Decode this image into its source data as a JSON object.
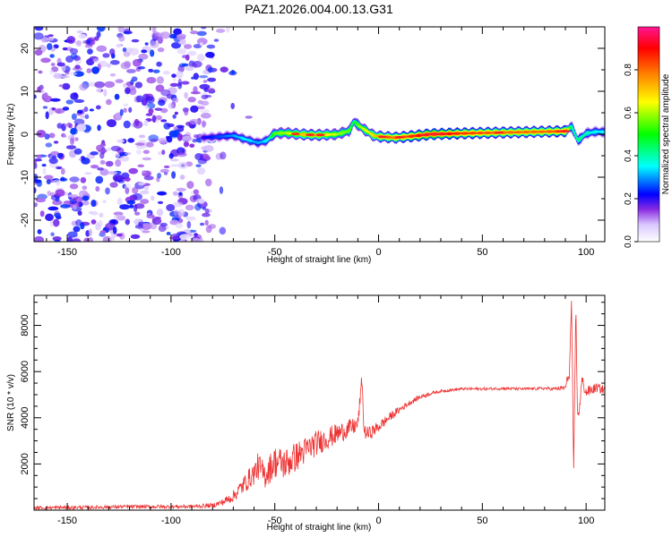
{
  "title": "PAZ1.2026.004.00.13.G31",
  "chart_data": [
    {
      "type": "heatmap",
      "title": "PAZ1.2026.004.00.13.G31",
      "xlabel": "Height of straight line (km)",
      "ylabel": "Frequency (Hz)",
      "xlim": [
        -166,
        109
      ],
      "ylim": [
        -25,
        25
      ],
      "xticks": [
        -150,
        -100,
        -50,
        0,
        50,
        100
      ],
      "yticks": [
        -20,
        -10,
        0,
        10,
        20
      ],
      "colorbar": {
        "label": "Normalized spectral amplitude",
        "range": [
          0,
          1
        ],
        "ticks": [
          0,
          0.2,
          0.4,
          0.6,
          0.8
        ],
        "tick_labels": [
          "0.0",
          "0.2",
          "0.4",
          "0.6",
          "0.8"
        ],
        "colors": [
          "#ffffff",
          "#8a2be2",
          "#0000ff",
          "#00ffff",
          "#00ff00",
          "#ffff00",
          "#ff8000",
          "#ff0000",
          "#ff1493"
        ]
      },
      "noise_region": {
        "x_range": [
          -166,
          -80
        ],
        "freq_range": [
          -25,
          25
        ],
        "amplitude": [
          0.05,
          0.25
        ]
      },
      "ridge": {
        "x": [
          -85,
          -78,
          -70,
          -64,
          -58,
          -54,
          -50,
          -45,
          -38,
          -30,
          -20,
          -14,
          -12,
          -9,
          -5,
          -2,
          2,
          8,
          15,
          25,
          40,
          60,
          80,
          90,
          93,
          96,
          100,
          105,
          109
        ],
        "freq": [
          -0.8,
          -0.6,
          -0.3,
          -1.2,
          -2.0,
          -1.5,
          0.2,
          0.3,
          0.0,
          -0.2,
          0.0,
          0.8,
          3.0,
          1.8,
          0.5,
          -0.4,
          -0.6,
          -0.8,
          -0.5,
          0.0,
          0.2,
          0.4,
          0.6,
          0.7,
          1.8,
          -1.5,
          0.2,
          0.6,
          0.5
        ],
        "amplitude": [
          0.2,
          0.25,
          0.3,
          0.35,
          0.3,
          0.35,
          0.55,
          0.6,
          0.7,
          0.75,
          0.6,
          0.55,
          0.45,
          0.6,
          0.65,
          0.7,
          0.8,
          0.8,
          0.85,
          0.95,
          0.85,
          0.8,
          0.8,
          0.85,
          0.4,
          0.45,
          0.4,
          0.35,
          0.35
        ]
      }
    },
    {
      "type": "line",
      "xlabel": "Height of straight line (km)",
      "ylabel": "SNR (10 * v/v)",
      "xlim": [
        -166,
        109
      ],
      "ylim": [
        0,
        9300
      ],
      "xticks": [
        -150,
        -100,
        -50,
        0,
        50,
        100
      ],
      "yticks": [
        2000,
        4000,
        6000,
        8000
      ],
      "series": [
        {
          "name": "SNR",
          "color": "#ee3333",
          "x": [
            -166,
            -140,
            -120,
            -100,
            -90,
            -80,
            -75,
            -70,
            -65,
            -60,
            -58,
            -55,
            -50,
            -45,
            -40,
            -35,
            -30,
            -25,
            -20,
            -15,
            -10,
            -8,
            -7,
            -5,
            0,
            5,
            10,
            15,
            20,
            25,
            30,
            35,
            40,
            50,
            60,
            70,
            80,
            85,
            90,
            92,
            93,
            94,
            95,
            96,
            98,
            100,
            105,
            109
          ],
          "values": [
            100,
            120,
            150,
            150,
            160,
            200,
            350,
            600,
            1100,
            1600,
            1900,
            1500,
            2100,
            2000,
            2300,
            2600,
            2900,
            3100,
            3300,
            3500,
            3700,
            5700,
            3400,
            3300,
            3600,
            4000,
            4350,
            4650,
            4900,
            5050,
            5150,
            5200,
            5250,
            5250,
            5270,
            5250,
            5270,
            5250,
            5300,
            6000,
            9200,
            1200,
            8800,
            3800,
            5600,
            5100,
            5300,
            5200
          ],
          "noise": [
            80,
            80,
            80,
            80,
            80,
            100,
            150,
            250,
            400,
            500,
            600,
            600,
            700,
            700,
            650,
            600,
            550,
            500,
            450,
            400,
            350,
            300,
            300,
            300,
            250,
            200,
            150,
            120,
            100,
            80,
            60,
            60,
            60,
            60,
            60,
            60,
            60,
            80,
            120,
            300,
            400,
            500,
            500,
            400,
            300,
            250,
            200,
            200
          ]
        }
      ]
    }
  ]
}
